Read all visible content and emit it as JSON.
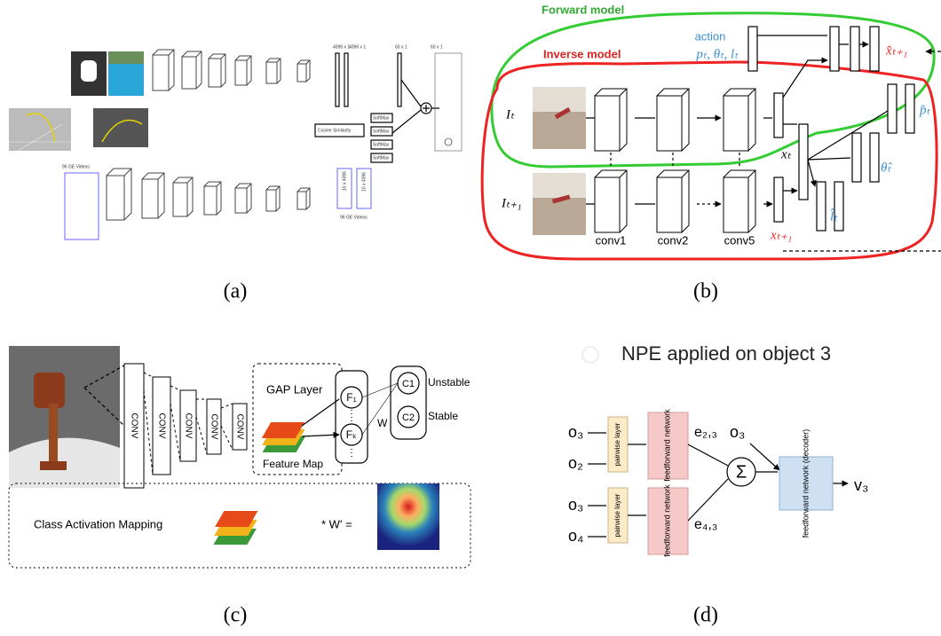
{
  "panel_a": {
    "caption": "(a)",
    "labels": [
      "Cosine Similarity",
      "SoftMax",
      "SoftMax",
      "SoftMax",
      "SoftMax",
      "96 GE Videos",
      "96 GE Videos",
      "10 x 4096",
      "10 x 4096",
      "4096 x 1",
      "4096 x 1",
      "60 x 1",
      "60 x 1"
    ]
  },
  "panel_b": {
    "caption": "(b)",
    "forward_model": "Forward model",
    "inverse_model": "Inverse model",
    "action": "action",
    "action_vars": "pₜ, θₜ, lₜ",
    "image_t": "Iₜ",
    "image_t1": "Iₜ₊₁",
    "conv1": "conv1",
    "conv2": "conv2",
    "conv5": "conv5",
    "x_t": "xₜ",
    "x_t1": "xₜ₊₁",
    "x_hat": "x̂ₜ₊₁",
    "p_hat": "p̂ₜ",
    "theta_hat": "θ̂ₜ",
    "l_hat": "l̂ₜ"
  },
  "panel_c": {
    "caption": "(c)",
    "conv": [
      "CONV",
      "CONV",
      "CONV",
      "CONV",
      "CONV"
    ],
    "gap_layer": "GAP Layer",
    "feature_map": "Feature Map",
    "f1": "F₁",
    "fk": "Fₖ",
    "c1": "C1",
    "c2": "C2",
    "unstable": "Unstable",
    "stable": "Stable",
    "w": "W",
    "cam": "Class Activation Mapping",
    "cam_op": "* W' ="
  },
  "panel_d": {
    "caption": "(d)",
    "title": "NPE applied on object 3",
    "inputs": [
      "o₃",
      "o₂",
      "o₃",
      "o₄"
    ],
    "pairwise": [
      "pairwise layer",
      "pairwise layer"
    ],
    "feedforward": [
      "feedforward network",
      "feedforward network"
    ],
    "e23": "e₂,₃",
    "e43": "e₄,₃",
    "sigma": "Σ",
    "o3": "o₃",
    "decoder": "feedforward network (decoder)",
    "output": "v₃"
  }
}
